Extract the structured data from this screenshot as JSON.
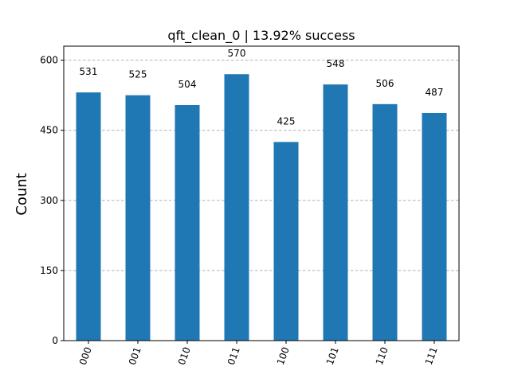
{
  "chart_data": {
    "type": "bar",
    "title": "qft_clean_0 | 13.92% success",
    "xlabel": "",
    "ylabel": "Count",
    "categories": [
      "000",
      "001",
      "010",
      "011",
      "100",
      "101",
      "110",
      "111"
    ],
    "values": [
      531,
      525,
      504,
      570,
      425,
      548,
      506,
      487
    ],
    "ylim": [
      0,
      630
    ],
    "yticks": [
      0,
      150,
      300,
      450,
      600
    ],
    "bar_color": "#1f77b4",
    "grid": "horizontal dashed",
    "data_labels": true
  }
}
